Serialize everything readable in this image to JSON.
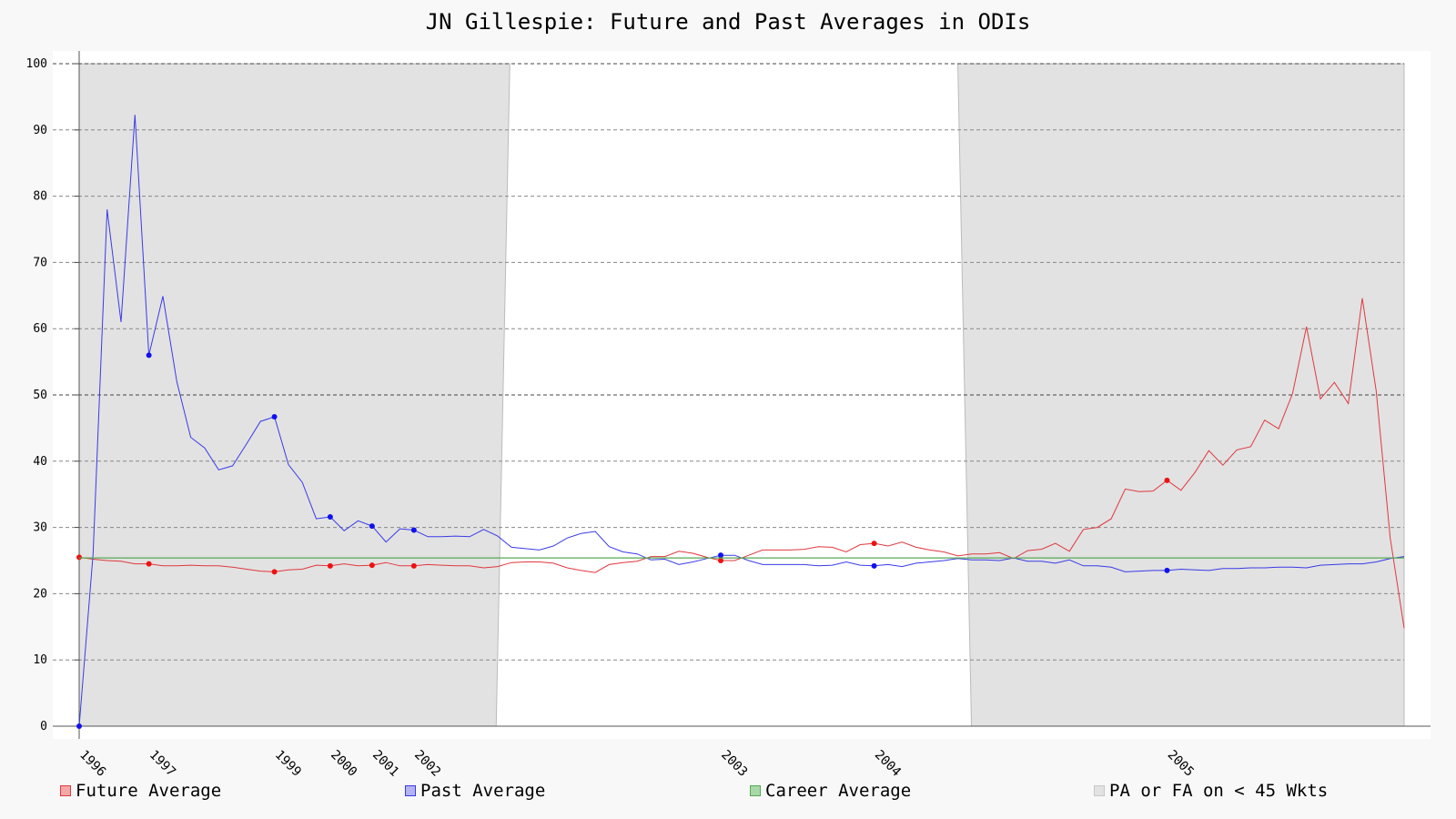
{
  "chart_data": {
    "type": "line",
    "title": "JN Gillespie: Future and Past Averages in ODIs",
    "xlabel": "",
    "ylabel": "",
    "ylim": [
      0,
      100
    ],
    "y_ticks": [
      0,
      10,
      20,
      30,
      40,
      50,
      60,
      70,
      80,
      90,
      100
    ],
    "x_tick_labels": [
      {
        "label": "1996",
        "index": 0
      },
      {
        "label": "1997",
        "index": 5
      },
      {
        "label": "1999",
        "index": 14
      },
      {
        "label": "2000",
        "index": 18
      },
      {
        "label": "2001",
        "index": 21
      },
      {
        "label": "2002",
        "index": 24
      },
      {
        "label": "2003",
        "index": 46
      },
      {
        "label": "2004",
        "index": 57
      },
      {
        "label": "2005",
        "index": 78
      }
    ],
    "grid": true,
    "legend_position": "bottom",
    "shaded_regions": [
      [
        0,
        29.9
      ],
      [
        63,
        95
      ]
    ],
    "series": [
      {
        "name": "Future Average",
        "color": "#e0383f",
        "markers": [
          0,
          5,
          14,
          18,
          21,
          24,
          46,
          57,
          78
        ],
        "values": [
          25.5,
          25.2,
          25.0,
          24.9,
          24.5,
          24.5,
          24.2,
          24.2,
          24.3,
          24.2,
          24.2,
          24.0,
          23.7,
          23.4,
          23.3,
          23.6,
          23.7,
          24.3,
          24.2,
          24.5,
          24.2,
          24.3,
          24.7,
          24.2,
          24.2,
          24.4,
          24.3,
          24.2,
          24.2,
          23.9,
          24.1,
          24.7,
          24.8,
          24.8,
          24.6,
          23.9,
          23.5,
          23.2,
          24.4,
          24.7,
          24.9,
          25.6,
          25.6,
          26.4,
          26.1,
          25.5,
          25.0,
          25.0,
          25.8,
          26.6,
          26.6,
          26.6,
          26.7,
          27.1,
          27.0,
          26.3,
          27.4,
          27.6,
          27.2,
          27.8,
          27.0,
          26.6,
          26.3,
          25.7,
          26.0,
          26.0,
          26.2,
          25.3,
          26.5,
          26.7,
          27.6,
          26.4,
          29.7,
          30.0,
          31.3,
          35.8,
          35.4,
          35.5,
          37.1,
          35.6,
          38.3,
          41.6,
          39.4,
          41.7,
          42.2,
          46.2,
          44.9,
          50.2,
          60.3,
          49.4,
          51.9,
          48.7,
          64.6,
          50.6,
          28.4,
          14.8
        ]
      },
      {
        "name": "Past Average",
        "color": "#3a3ae8",
        "markers": [
          0,
          5,
          14,
          18,
          21,
          24,
          46,
          57,
          78
        ],
        "values": [
          0.0,
          26.0,
          78.0,
          61.0,
          92.3,
          56.0,
          64.9,
          52.0,
          43.6,
          42.0,
          38.7,
          39.3,
          42.6,
          46.0,
          46.7,
          39.5,
          36.8,
          31.3,
          31.6,
          29.5,
          31.0,
          30.2,
          27.8,
          29.8,
          29.6,
          28.6,
          28.6,
          28.7,
          28.6,
          29.7,
          28.7,
          27.0,
          26.8,
          26.6,
          27.2,
          28.4,
          29.1,
          29.4,
          27.1,
          26.3,
          26.0,
          25.1,
          25.2,
          24.4,
          24.8,
          25.3,
          25.8,
          25.8,
          25.0,
          24.4,
          24.4,
          24.4,
          24.4,
          24.2,
          24.3,
          24.8,
          24.3,
          24.2,
          24.4,
          24.1,
          24.6,
          24.8,
          25.0,
          25.3,
          25.1,
          25.1,
          25.0,
          25.4,
          24.9,
          24.9,
          24.6,
          25.1,
          24.2,
          24.2,
          24.0,
          23.3,
          23.4,
          23.5,
          23.5,
          23.7,
          23.6,
          23.5,
          23.8,
          23.8,
          23.9,
          23.9,
          24.0,
          24.0,
          23.9,
          24.3,
          24.4,
          24.5,
          24.5,
          24.8,
          25.3,
          25.6
        ]
      },
      {
        "name": "Career Average",
        "color": "#55aa55",
        "value": 25.4
      }
    ],
    "legend": [
      {
        "label": "Future Average",
        "fill": "#f4a7a7",
        "stroke": "#e0383f"
      },
      {
        "label": "Past Average",
        "fill": "#b3b3f2",
        "stroke": "#3a3ae8"
      },
      {
        "label": "Career Average",
        "fill": "#a8d8a8",
        "stroke": "#55aa55"
      },
      {
        "label": "PA or FA on < 45 Wkts",
        "fill": "#e2e2e2",
        "stroke": "#c8c8c8"
      }
    ]
  }
}
